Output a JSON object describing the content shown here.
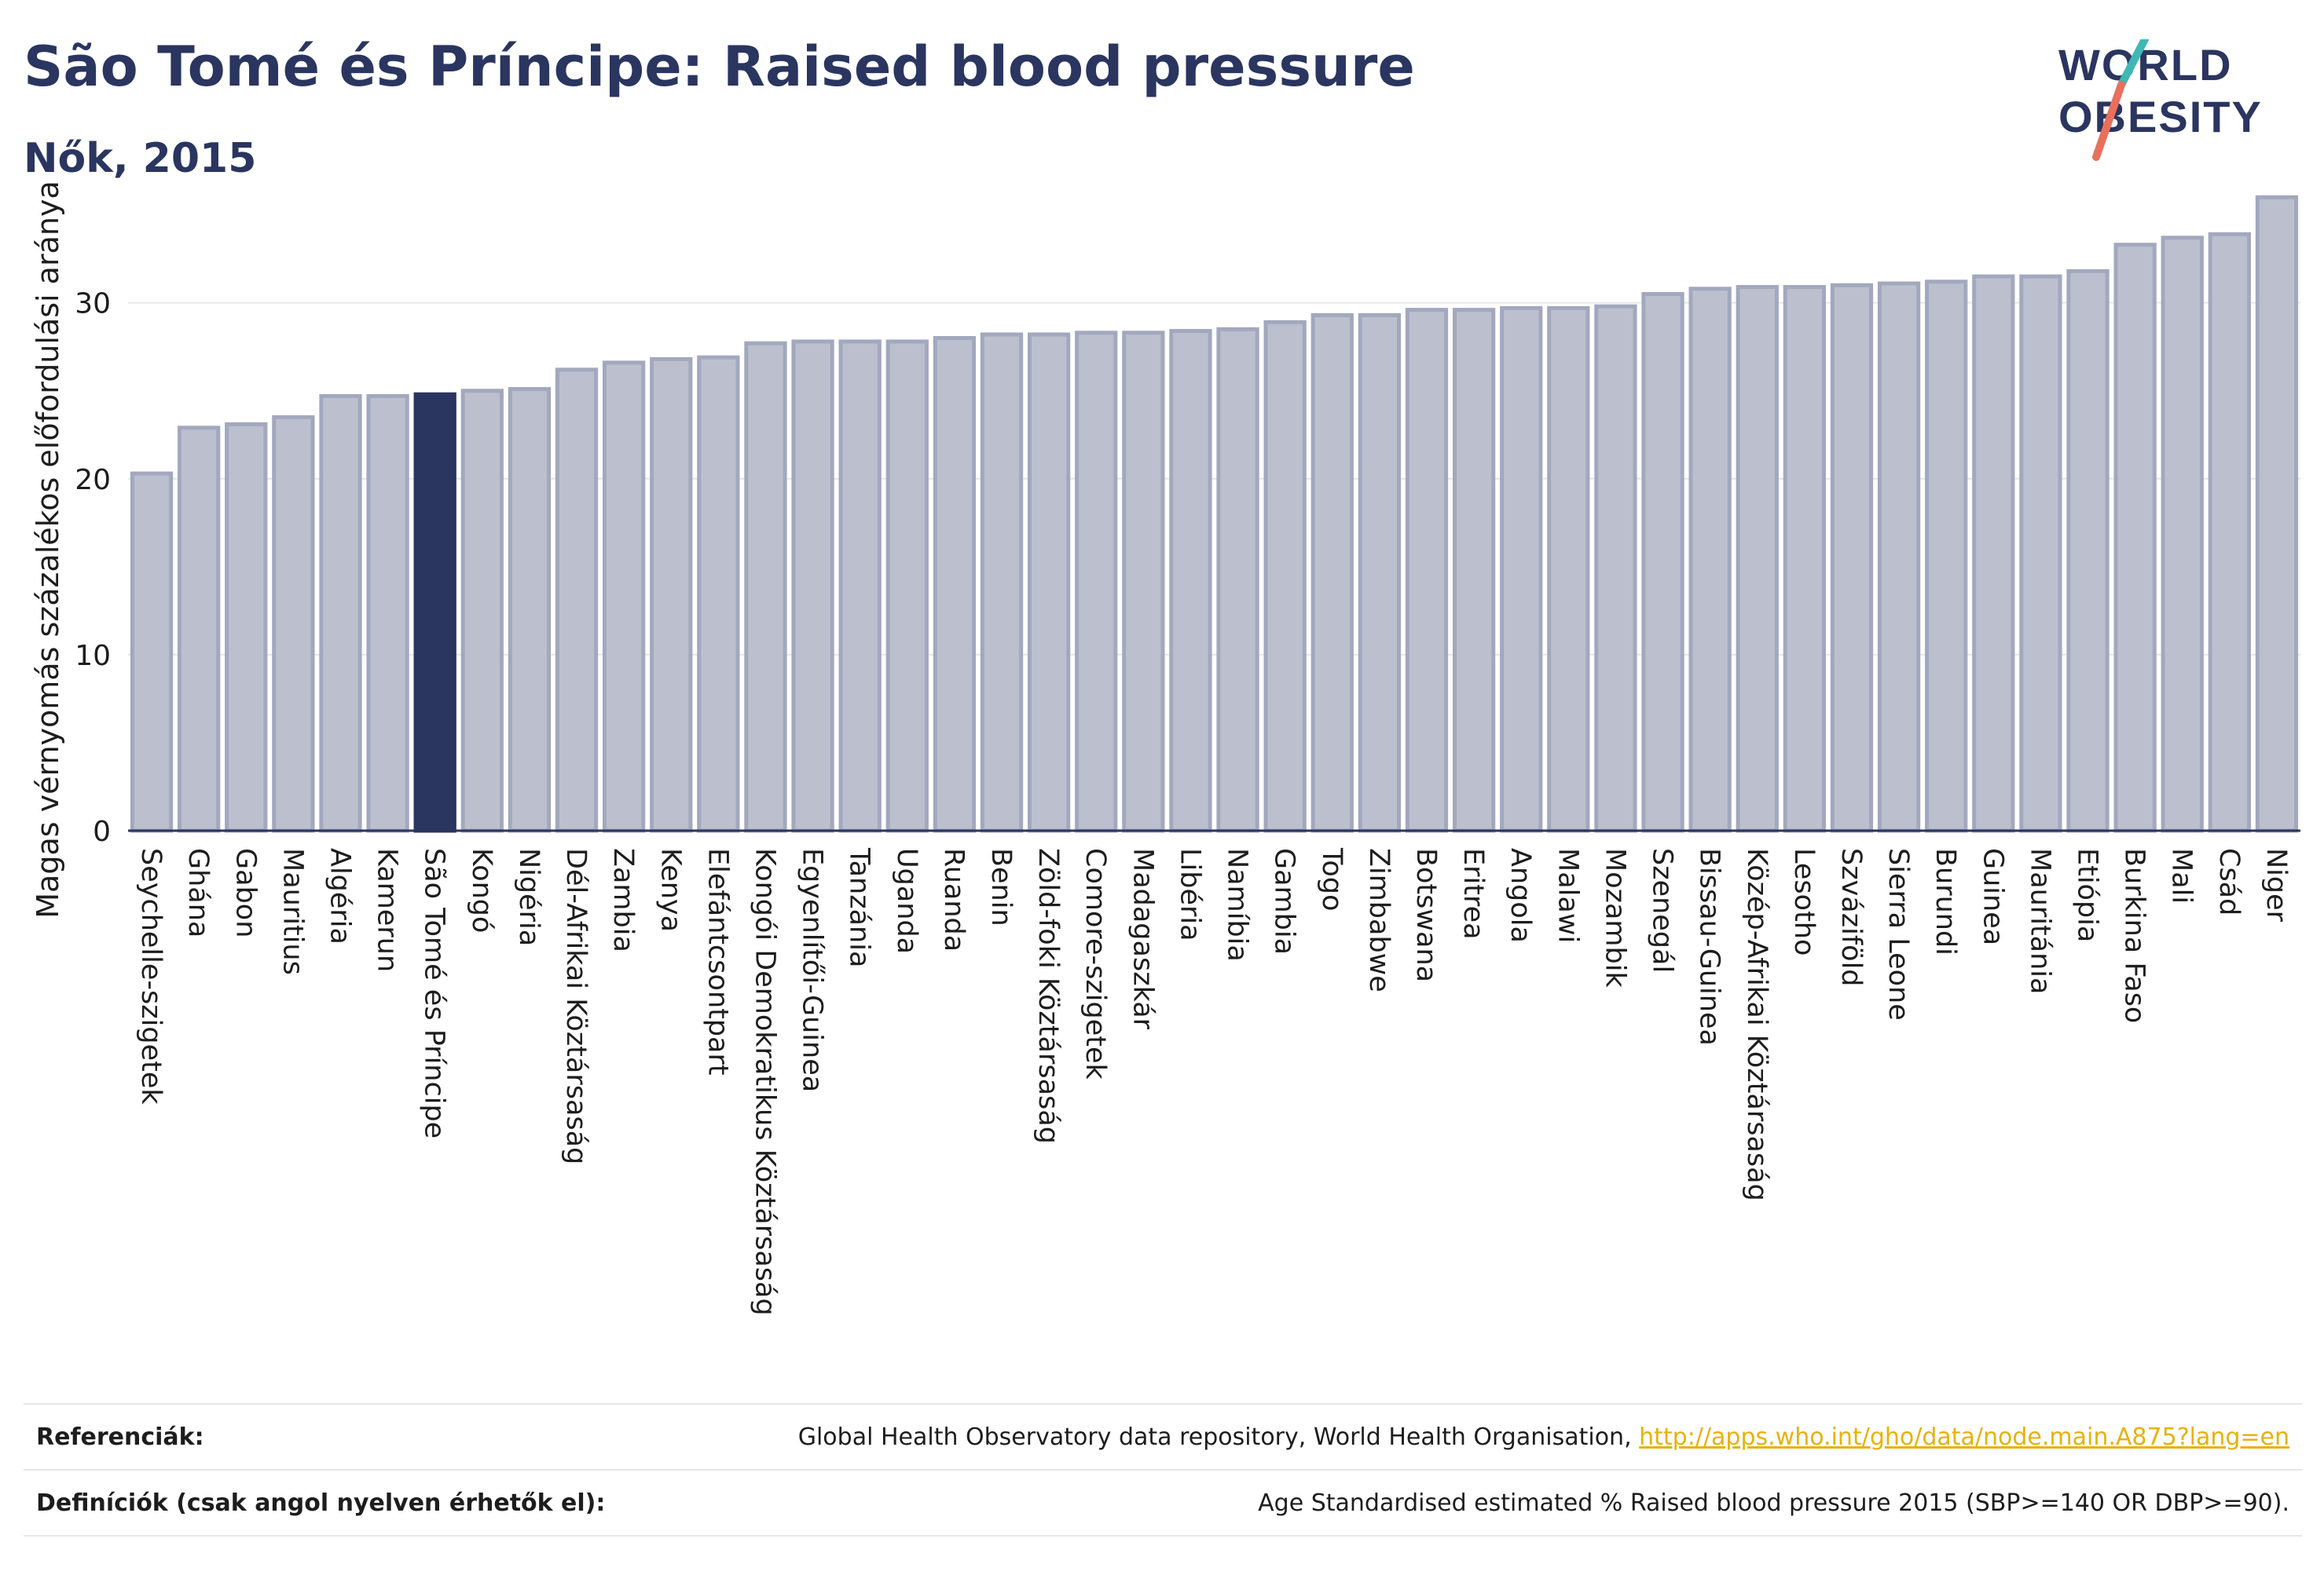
{
  "header": {
    "title": "São Tomé és Príncipe: Raised blood pressure",
    "subtitle": "Nők, 2015"
  },
  "logo": {
    "line1": "WORLD",
    "line2": "OBESITY",
    "colors": {
      "text": "#2a3560",
      "slash_top": "#3fb7b5",
      "slash_bottom": "#e8705d"
    }
  },
  "colors": {
    "bar": "#bcc0ce",
    "bar_stroke": "#a2a8bd",
    "highlight": "#2a3560",
    "axis": "#2a3560",
    "grid": "#e6e6e6",
    "link": "#e8b10d"
  },
  "chart_data": {
    "type": "bar",
    "ylabel": "Magas vérnyomás százalékos előfordulási aránya",
    "ylim": [
      0,
      36.5
    ],
    "yticks": [
      0,
      10,
      20,
      30
    ],
    "highlight": "São Tomé és Príncipe",
    "categories": [
      "Seychelle-szigetek",
      "Ghána",
      "Gabon",
      "Mauritius",
      "Algéria",
      "Kamerun",
      "São Tomé és Príncipe",
      "Kongó",
      "Nigéria",
      "Dél-Afrikai Köztársaság",
      "Zambia",
      "Kenya",
      "Elefántcsontpart",
      "Kongói Demokratikus Köztársaság",
      "Egyenlítői-Guinea",
      "Tanzánia",
      "Uganda",
      "Ruanda",
      "Benin",
      "Zöld-foki Köztársaság",
      "Comore-szigetek",
      "Madagaszkár",
      "Libéria",
      "Namíbia",
      "Gambia",
      "Togo",
      "Zimbabwe",
      "Botswana",
      "Eritrea",
      "Angola",
      "Malawi",
      "Mozambik",
      "Szenegál",
      "Bissau-Guinea",
      "Közép-Afrikai Köztársaság",
      "Lesotho",
      "Szváziföld",
      "Sierra Leone",
      "Burundi",
      "Guinea",
      "Mauritánia",
      "Etiópia",
      "Burkina Faso",
      "Mali",
      "Csád",
      "Niger"
    ],
    "values": [
      20.3,
      22.9,
      23.1,
      23.5,
      24.7,
      24.7,
      24.8,
      25.0,
      25.1,
      26.2,
      26.6,
      26.8,
      26.9,
      27.7,
      27.8,
      27.8,
      27.8,
      28.0,
      28.2,
      28.2,
      28.3,
      28.3,
      28.4,
      28.5,
      28.9,
      29.3,
      29.3,
      29.6,
      29.6,
      29.7,
      29.7,
      29.8,
      30.5,
      30.8,
      30.9,
      30.9,
      31.0,
      31.1,
      31.2,
      31.5,
      31.5,
      31.8,
      33.3,
      33.7,
      33.9,
      36.0
    ]
  },
  "references": {
    "label": "Referenciák:",
    "text": "Global Health Observatory data repository, World Health Organisation, ",
    "link": "http://apps.who.int/gho/data/node.main.A875?lang=en"
  },
  "definitions": {
    "label": "Definíciók (csak angol nyelven érhetők el):",
    "text": "Age Standardised estimated % Raised blood pressure 2015 (SBP>=140 OR DBP>=90)."
  }
}
